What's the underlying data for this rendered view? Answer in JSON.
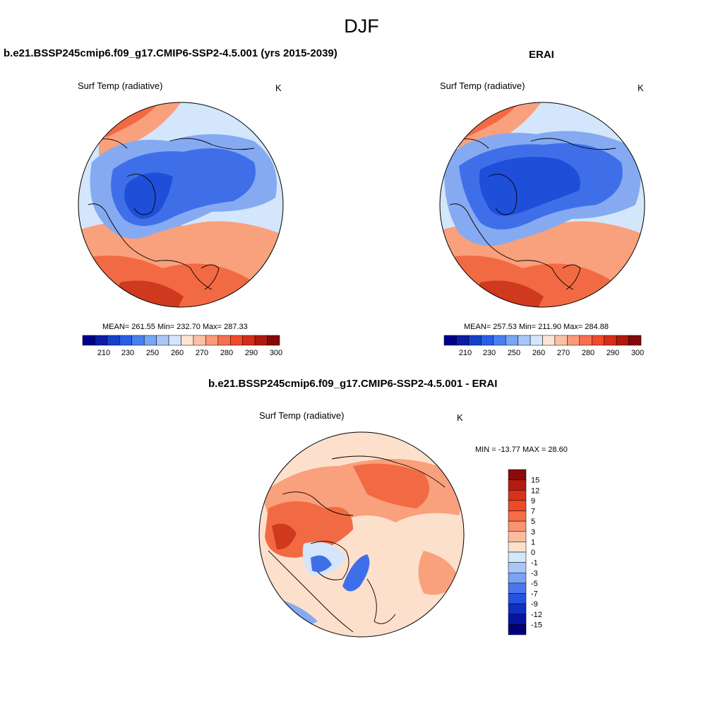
{
  "figure": {
    "season": "DJF"
  },
  "panels": [
    {
      "title": "b.e21.BSSP245cmip6.f09_g17.CMIP6-SSP2-4.5.001 (yrs 2015-2039)",
      "variable": "Surf Temp (radiative)",
      "units": "K",
      "stats_text": "MEAN= 261.55  Min= 232.70  Max= 287.33"
    },
    {
      "title": "ERAI",
      "variable": "Surf Temp (radiative)",
      "units": "K",
      "stats_text": "MEAN= 257.53  Min= 211.90  Max= 284.88"
    },
    {
      "title": "b.e21.BSSP245cmip6.f09_g17.CMIP6-SSP2-4.5.001 - ERAI",
      "variable": "Surf Temp (radiative)",
      "units": "K",
      "stats_text": "MIN = -13.77 MAX =  28.60"
    }
  ],
  "colorbars": {
    "absolute": {
      "tick_labels": [
        "210",
        "230",
        "250",
        "260",
        "270",
        "280",
        "290",
        "300"
      ],
      "colors": [
        "#00008c",
        "#0a1ea8",
        "#1441c8",
        "#2a5ee6",
        "#4a7ff0",
        "#79a5f5",
        "#a9c6f8",
        "#d4e6fb",
        "#fde5d4",
        "#fcc1a4",
        "#f99a79",
        "#f6704f",
        "#f14a2a",
        "#d82c18",
        "#b01910",
        "#85080a"
      ]
    },
    "difference": {
      "tick_labels": [
        "15",
        "12",
        "9",
        "7",
        "5",
        "3",
        "1",
        "0",
        "-1",
        "-3",
        "-5",
        "-7",
        "-9",
        "-12",
        "-15"
      ],
      "colors": [
        "#8b0a0a",
        "#b51c10",
        "#d8321a",
        "#ef4a26",
        "#f66c44",
        "#f99370",
        "#fcbc9c",
        "#fde0cc",
        "#d4e6fb",
        "#a9c6f8",
        "#7ba3f3",
        "#4a77ee",
        "#2553e0",
        "#1030c0",
        "#0614a0",
        "#00007a"
      ]
    }
  },
  "maps": {
    "projection": "north-polar-stereographic",
    "palette": {
      "deep_blue": "#1f4fd9",
      "mid_blue": "#3f6fe8",
      "light_blue": "#85aaf2",
      "pale_blue": "#d4e6fb",
      "pale_red": "#fde0cc",
      "light_red": "#f9a07c",
      "mid_red": "#f26a43",
      "deep_red": "#cf3a1e"
    }
  }
}
